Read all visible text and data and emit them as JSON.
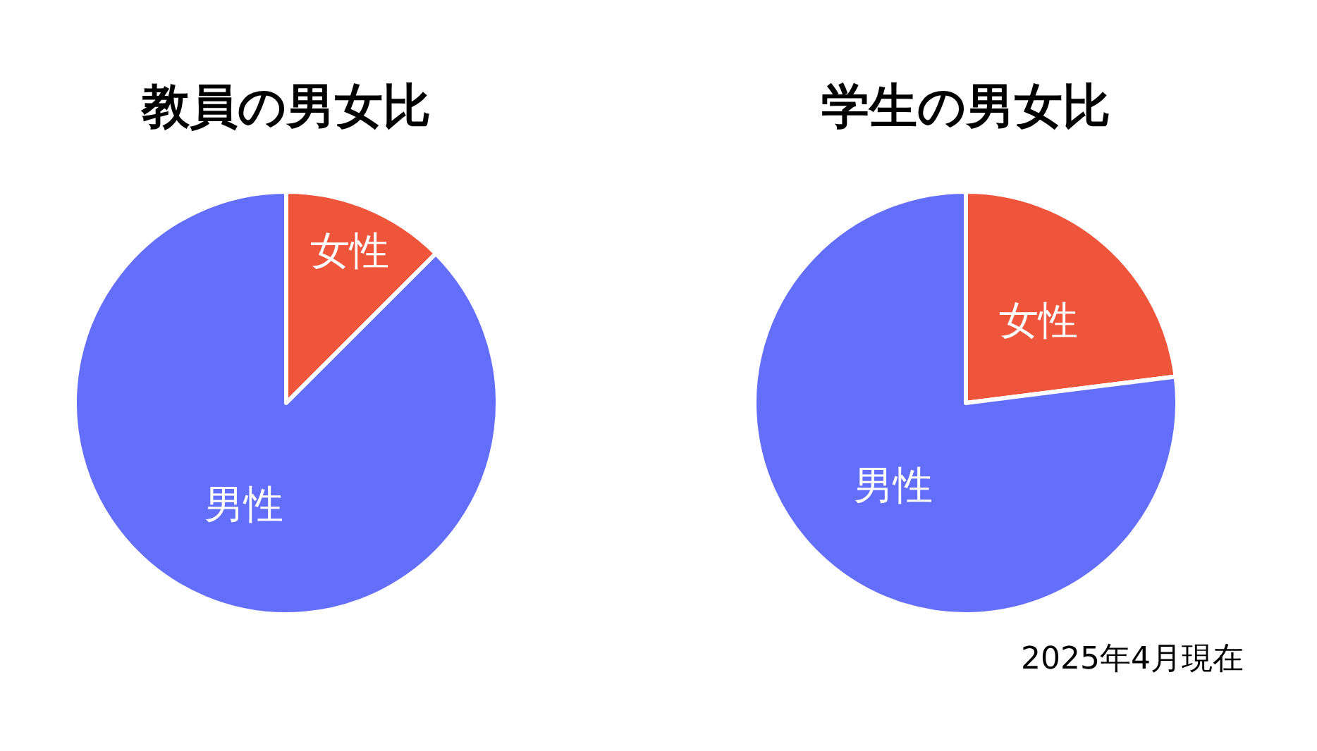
{
  "chart_data": [
    {
      "type": "pie",
      "title": "教員の男女比",
      "categories": [
        "女性",
        "男性"
      ],
      "values": [
        12.5,
        87.5
      ],
      "colors": [
        "#ef553b",
        "#636efa"
      ]
    },
    {
      "type": "pie",
      "title": "学生の男女比",
      "categories": [
        "女性",
        "男性"
      ],
      "values": [
        23,
        77
      ],
      "colors": [
        "#ef553b",
        "#636efa"
      ],
      "annotations": [
        "2025年4月現在"
      ]
    }
  ]
}
